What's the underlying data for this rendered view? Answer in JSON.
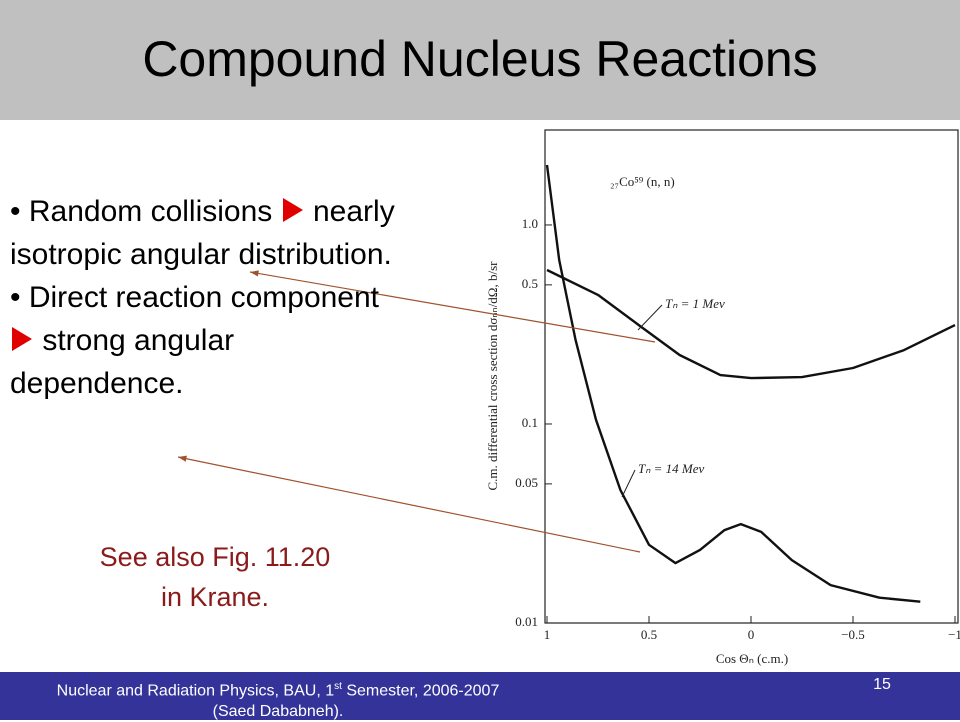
{
  "header": {
    "title": "Compound Nucleus Reactions"
  },
  "bullets": [
    {
      "cause": "Random collisions",
      "effect": "nearly isotropic angular distribution."
    },
    {
      "cause": "Direct reaction component",
      "effect": "strong angular dependence."
    }
  ],
  "note": {
    "lines": [
      "See also Fig. 11.20",
      "in Krane."
    ]
  },
  "footer": {
    "course": "Nuclear and Radiation Physics, BAU, 1",
    "ordinal_suffix": "st",
    "term": "Semester, 2006-2007",
    "author": "(Saed Dababneh).",
    "page": "15"
  },
  "chart_data": {
    "type": "line",
    "annotation": "₂₇Co⁵⁹ (n, n)",
    "x_label": "Cos Θₙ (c.m.)",
    "y_label": "C.m. differential cross section dσₙₙ/dΩ, b/sr",
    "xlim": [
      1,
      -1
    ],
    "xticks": [
      1,
      0.5,
      0,
      {
        "value": -0.5,
        "label": "−0.5"
      },
      {
        "value": -1,
        "label": "−1"
      }
    ],
    "ylim": [
      0.01,
      3
    ],
    "log_y": true,
    "yticks": [
      0.01,
      0.05,
      0.1,
      0.5,
      {
        "value": 1,
        "label": "1.0"
      }
    ],
    "series": [
      {
        "name": "Tₙ = 1 Mev",
        "color": "#111111",
        "x": [
          1,
          0.75,
          0.55,
          0.35,
          0.15,
          0,
          -0.25,
          -0.5,
          -0.75,
          -1
        ],
        "values": [
          0.594,
          0.445,
          0.314,
          0.222,
          0.176,
          0.17,
          0.172,
          0.191,
          0.235,
          0.314
        ]
      },
      {
        "name": "Tₙ = 14 Mev",
        "color": "#111111",
        "x": [
          1,
          0.94,
          0.86,
          0.76,
          0.64,
          0.5,
          0.37,
          0.25,
          0.13,
          0.05,
          -0.05,
          -0.2,
          -0.39,
          -0.63,
          -0.83
        ],
        "values": [
          2.0,
          0.667,
          0.264,
          0.105,
          0.0466,
          0.0247,
          0.02,
          0.0233,
          0.0293,
          0.0314,
          0.0287,
          0.0207,
          0.0155,
          0.0134,
          0.0128
        ]
      }
    ]
  }
}
